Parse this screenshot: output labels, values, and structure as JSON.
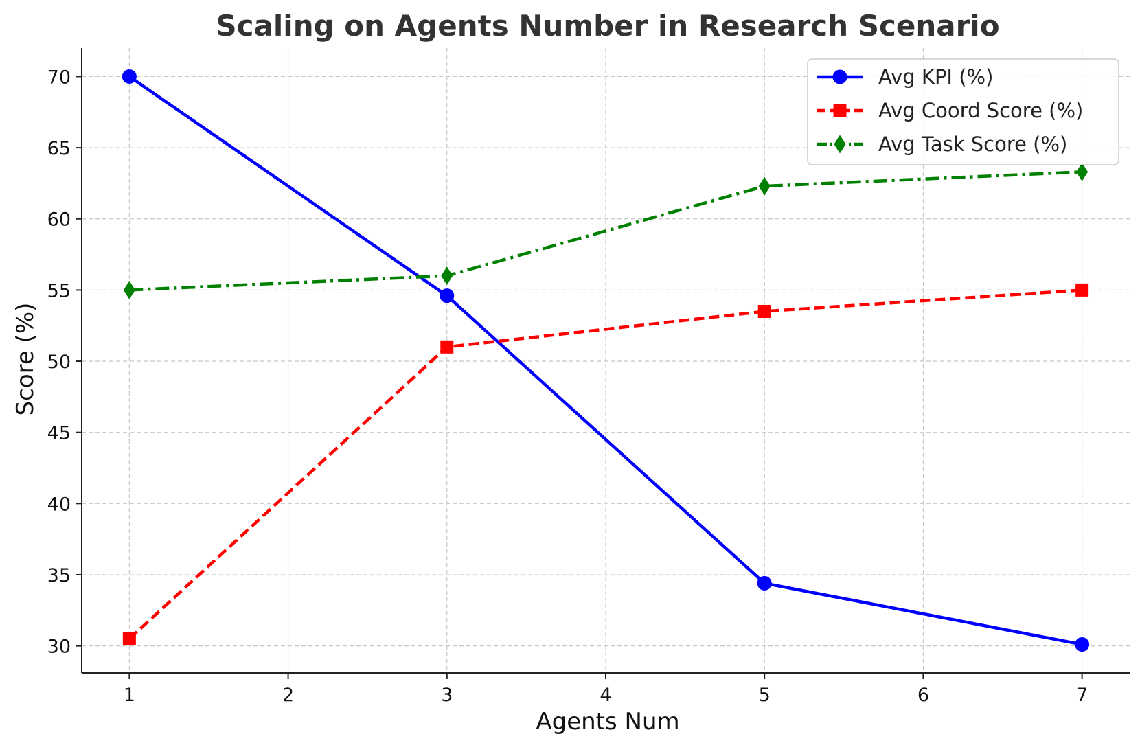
{
  "chart_data": {
    "type": "line",
    "title": "Scaling on Agents Number in Research Scenario",
    "xlabel": "Agents Num",
    "ylabel": "Score (%)",
    "x": [
      1,
      3,
      5,
      7
    ],
    "xticks": [
      1,
      2,
      3,
      4,
      5,
      6,
      7
    ],
    "yticks": [
      30,
      35,
      40,
      45,
      50,
      55,
      60,
      65,
      70
    ],
    "xlim": [
      0.7,
      7.3
    ],
    "ylim": [
      28.1,
      72.0
    ],
    "grid": true,
    "legend_position": "top-right",
    "series": [
      {
        "name": "Avg KPI (%)",
        "values": [
          70.0,
          54.6,
          34.4,
          30.1
        ],
        "color": "#0000ff",
        "line_style": "solid",
        "marker": "circle"
      },
      {
        "name": "Avg Coord Score (%)",
        "values": [
          30.5,
          51.0,
          53.5,
          55.0
        ],
        "color": "#ff0000",
        "line_style": "dashed",
        "marker": "square"
      },
      {
        "name": "Avg Task Score (%)",
        "values": [
          55.0,
          56.0,
          62.3,
          63.3
        ],
        "color": "#008000",
        "line_style": "dashdot",
        "marker": "diamond"
      }
    ]
  }
}
